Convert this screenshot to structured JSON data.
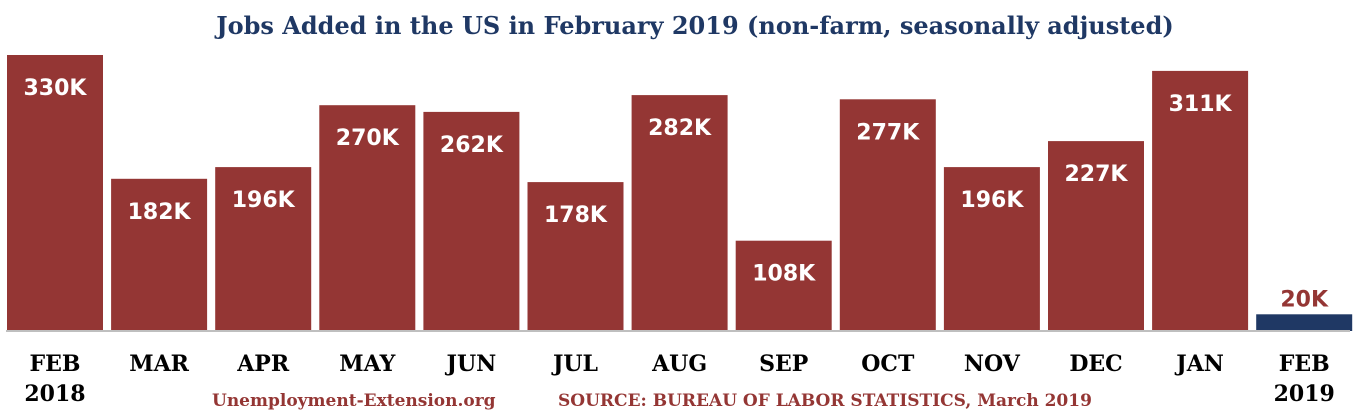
{
  "chart_data": {
    "type": "bar",
    "title": "Jobs Added in the US in February 2019 (non-farm, seasonally adjusted)",
    "categories": [
      {
        "line1": "FEB",
        "line2": "2018"
      },
      {
        "line1": "MAR",
        "line2": ""
      },
      {
        "line1": "APR",
        "line2": ""
      },
      {
        "line1": "MAY",
        "line2": ""
      },
      {
        "line1": "JUN",
        "line2": ""
      },
      {
        "line1": "JUL",
        "line2": ""
      },
      {
        "line1": "AUG",
        "line2": ""
      },
      {
        "line1": "SEP",
        "line2": ""
      },
      {
        "line1": "OCT",
        "line2": ""
      },
      {
        "line1": "NOV",
        "line2": ""
      },
      {
        "line1": "DEC",
        "line2": ""
      },
      {
        "line1": "JAN",
        "line2": ""
      },
      {
        "line1": "FEB",
        "line2": "2019"
      }
    ],
    "values": [
      330,
      182,
      196,
      270,
      262,
      178,
      282,
      108,
      277,
      196,
      227,
      311,
      20
    ],
    "value_labels": [
      "330K",
      "182K",
      "196K",
      "270K",
      "262K",
      "178K",
      "282K",
      "108K",
      "277K",
      "196K",
      "227K",
      "311K",
      "20K"
    ],
    "ylim": [
      0,
      330
    ],
    "unit": "thousands of jobs",
    "grid": false,
    "legend": "none",
    "colors": {
      "bar": "#943634",
      "highlight_bar": "#1f3864",
      "title": "#1f3864",
      "label_inside": "#ffffff",
      "label_outside": "#943634",
      "axis": "#bfbfbf",
      "footer": "#943634",
      "tick": "#000000"
    },
    "highlight_index": 12
  },
  "footer": {
    "site": "Unemployment-Extension.org",
    "source": "SOURCE: BUREAU OF LABOR STATISTICS, March 2019"
  }
}
